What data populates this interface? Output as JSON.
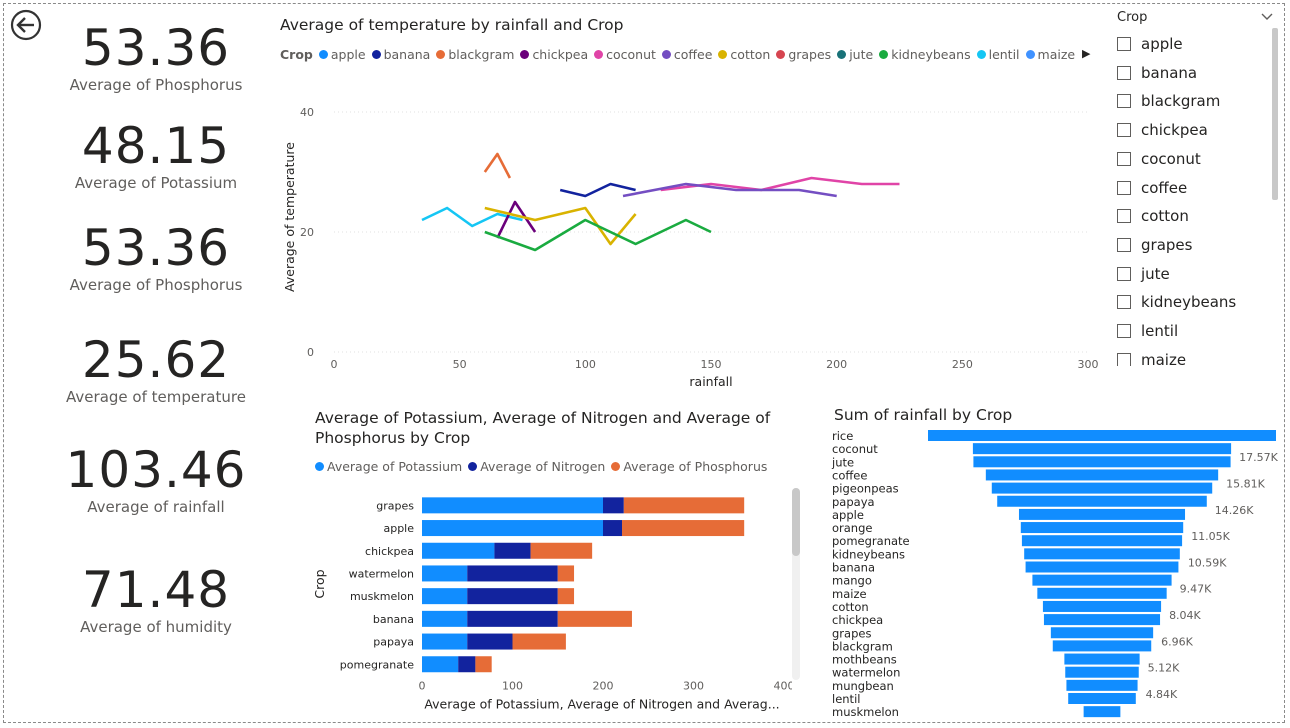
{
  "kpis": [
    {
      "value": "53.36",
      "label": "Average of Phosphorus"
    },
    {
      "value": "48.15",
      "label": "Average of Potassium"
    },
    {
      "value": "53.36",
      "label": "Average of Phosphorus"
    },
    {
      "value": "25.62",
      "label": "Average of temperature"
    },
    {
      "value": "103.46",
      "label": "Average of rainfall"
    },
    {
      "value": "71.48",
      "label": "Average of humidity"
    }
  ],
  "line_visual": {
    "title": "Average of temperature by rainfall and Crop",
    "legend_title": "Crop",
    "legend": [
      {
        "name": "apple",
        "color": "#118DFF"
      },
      {
        "name": "banana",
        "color": "#12239E"
      },
      {
        "name": "blackgram",
        "color": "#E66C37"
      },
      {
        "name": "chickpea",
        "color": "#6B007B"
      },
      {
        "name": "coconut",
        "color": "#E044A7"
      },
      {
        "name": "coffee",
        "color": "#744EC2"
      },
      {
        "name": "cotton",
        "color": "#D9B300"
      },
      {
        "name": "grapes",
        "color": "#D64550"
      },
      {
        "name": "jute",
        "color": "#197278"
      },
      {
        "name": "kidneybeans",
        "color": "#1AAB40"
      },
      {
        "name": "lentil",
        "color": "#15C6F4"
      },
      {
        "name": "maize",
        "color": "#4092FF"
      }
    ],
    "legend_more_icon": "triangle-right-icon"
  },
  "stacked_visual": {
    "title_line1": "Average of Potassium, Average of Nitrogen and Average of",
    "title_line2": "Phosphorus by Crop",
    "legend": [
      {
        "name": "Average of Potassium",
        "color": "#118DFF"
      },
      {
        "name": "Average of Nitrogen",
        "color": "#12239E"
      },
      {
        "name": "Average of Phosphorus",
        "color": "#E66C37"
      }
    ]
  },
  "funnel_visual": {
    "title": "Sum of rainfall by Crop"
  },
  "slicer": {
    "title": "Crop",
    "items": [
      "apple",
      "banana",
      "blackgram",
      "chickpea",
      "coconut",
      "coffee",
      "cotton",
      "grapes",
      "jute",
      "kidneybeans",
      "lentil",
      "maize"
    ]
  },
  "chart_data": [
    {
      "type": "line",
      "title": "Average of temperature by rainfall and Crop",
      "xlabel": "rainfall",
      "ylabel": "Average of temperature",
      "xlim": [
        0,
        300
      ],
      "ylim": [
        0,
        45
      ],
      "x_ticks": [
        0,
        50,
        100,
        150,
        200,
        250,
        300
      ],
      "y_ticks": [
        0,
        20,
        40
      ],
      "grid": "horizontal dotted",
      "legend_position": "top",
      "series": [
        {
          "name": "coconut",
          "color": "#E044A7",
          "x": [
            130,
            150,
            170,
            190,
            210,
            225
          ],
          "y": [
            27,
            28,
            27,
            29,
            28,
            28
          ]
        },
        {
          "name": "coffee",
          "color": "#744EC2",
          "x": [
            115,
            140,
            160,
            185,
            200
          ],
          "y": [
            26,
            28,
            27,
            27,
            26
          ]
        },
        {
          "name": "lentil",
          "color": "#15C6F4",
          "x": [
            35,
            45,
            55,
            65,
            75
          ],
          "y": [
            22,
            24,
            21,
            23,
            22
          ]
        },
        {
          "name": "chickpea",
          "color": "#6B007B",
          "x": [
            65,
            72,
            80
          ],
          "y": [
            19,
            25,
            20
          ]
        },
        {
          "name": "cotton",
          "color": "#D9B300",
          "x": [
            60,
            80,
            100,
            110,
            120
          ],
          "y": [
            24,
            22,
            24,
            18,
            23
          ]
        },
        {
          "name": "kidneybeans",
          "color": "#1AAB40",
          "x": [
            60,
            80,
            100,
            120,
            140,
            150
          ],
          "y": [
            20,
            17,
            22,
            18,
            22,
            20
          ]
        },
        {
          "name": "banana",
          "color": "#12239E",
          "x": [
            90,
            100,
            110,
            120
          ],
          "y": [
            27,
            26,
            28,
            27
          ]
        },
        {
          "name": "blackgram",
          "color": "#E66C37",
          "x": [
            60,
            65,
            70
          ],
          "y": [
            30,
            33,
            29
          ]
        }
      ]
    },
    {
      "type": "bar",
      "title": "Average of Potassium, Average of Nitrogen and Average of Phosphorus by Crop",
      "xlabel": "Average of Potassium, Average of Nitrogen and Averag...",
      "ylabel": "Crop",
      "xlim": [
        0,
        400
      ],
      "x_ticks": [
        0,
        100,
        200,
        300,
        400
      ],
      "categories": [
        "grapes",
        "apple",
        "chickpea",
        "watermelon",
        "muskmelon",
        "banana",
        "papaya",
        "pomegranate"
      ],
      "series": [
        {
          "name": "Average of Potassium",
          "color": "#118DFF",
          "values": [
            200,
            200,
            80,
            50,
            50,
            50,
            50,
            40
          ]
        },
        {
          "name": "Average of Nitrogen",
          "color": "#12239E",
          "values": [
            23,
            21,
            40,
            100,
            100,
            100,
            50,
            19
          ]
        },
        {
          "name": "Average of Phosphorus",
          "color": "#E66C37",
          "values": [
            133,
            135,
            68,
            18,
            18,
            82,
            59,
            18
          ]
        }
      ]
    },
    {
      "type": "funnel",
      "title": "Sum of rainfall by Crop",
      "categories": [
        "rice",
        "coconut",
        "jute",
        "coffee",
        "pigeonpeas",
        "papaya",
        "apple",
        "orange",
        "pomegranate",
        "kidneybeans",
        "banana",
        "mango",
        "maize",
        "cotton",
        "chickpea",
        "grapes",
        "blackgram",
        "mothbeans",
        "watermelon",
        "mungbean",
        "lentil",
        "muskmelon"
      ],
      "values": [
        23680,
        17570,
        17500,
        15810,
        15000,
        14260,
        11300,
        11050,
        10900,
        10590,
        10400,
        9470,
        8800,
        8040,
        7900,
        6960,
        6700,
        5120,
        5000,
        4840,
        4600,
        2500
      ],
      "data_labels": [
        "",
        "17.57K",
        "",
        "15.81K",
        "",
        "14.26K",
        "",
        "11.05K",
        "",
        "10.59K",
        "",
        "9.47K",
        "",
        "8.04K",
        "",
        "6.96K",
        "",
        "5.12K",
        "",
        "4.84K",
        "",
        ""
      ]
    }
  ]
}
